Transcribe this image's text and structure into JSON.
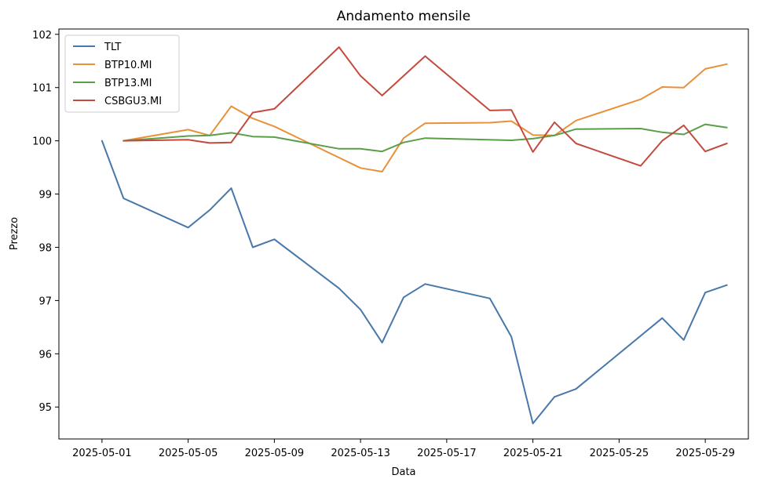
{
  "chart_data": {
    "type": "line",
    "title": "Andamento mensile",
    "xlabel": "Data",
    "ylabel": "Prezzo",
    "xlim": [
      "2025-04-29",
      "2025-05-31"
    ],
    "ylim": [
      94.4,
      102.1
    ],
    "x_ticks": [
      "2025-05-01",
      "2025-05-05",
      "2025-05-09",
      "2025-05-13",
      "2025-05-17",
      "2025-05-21",
      "2025-05-25",
      "2025-05-29"
    ],
    "y_ticks": [
      95,
      96,
      97,
      98,
      99,
      100,
      101,
      102
    ],
    "grid": false,
    "legend_position": "top-left",
    "series": [
      {
        "name": "TLT",
        "color": "#4878a8",
        "x": [
          "2025-05-01",
          "2025-05-02",
          "2025-05-05",
          "2025-05-06",
          "2025-05-07",
          "2025-05-08",
          "2025-05-09",
          "2025-05-12",
          "2025-05-13",
          "2025-05-14",
          "2025-05-15",
          "2025-05-16",
          "2025-05-19",
          "2025-05-20",
          "2025-05-21",
          "2025-05-22",
          "2025-05-23",
          "2025-05-27",
          "2025-05-28",
          "2025-05-29",
          "2025-05-30"
        ],
        "y": [
          100.0,
          98.92,
          98.37,
          98.7,
          99.11,
          98.0,
          98.15,
          97.23,
          96.83,
          96.21,
          97.06,
          97.31,
          97.04,
          96.32,
          94.69,
          95.19,
          95.34,
          96.67,
          96.26,
          97.15,
          97.29
        ]
      },
      {
        "name": "BTP10.MI",
        "color": "#e8913a",
        "x": [
          "2025-05-02",
          "2025-05-05",
          "2025-05-06",
          "2025-05-07",
          "2025-05-08",
          "2025-05-09",
          "2025-05-13",
          "2025-05-14",
          "2025-05-15",
          "2025-05-16",
          "2025-05-19",
          "2025-05-20",
          "2025-05-21",
          "2025-05-22",
          "2025-05-23",
          "2025-05-26",
          "2025-05-27",
          "2025-05-28",
          "2025-05-29",
          "2025-05-30"
        ],
        "y": [
          100.0,
          100.21,
          100.1,
          100.65,
          100.42,
          100.27,
          99.49,
          99.42,
          100.05,
          100.33,
          100.34,
          100.37,
          100.11,
          100.1,
          100.38,
          100.78,
          101.01,
          101.0,
          101.35,
          101.44
        ]
      },
      {
        "name": "BTP13.MI",
        "color": "#5a9e48",
        "x": [
          "2025-05-02",
          "2025-05-05",
          "2025-05-06",
          "2025-05-07",
          "2025-05-08",
          "2025-05-09",
          "2025-05-12",
          "2025-05-13",
          "2025-05-14",
          "2025-05-15",
          "2025-05-16",
          "2025-05-20",
          "2025-05-21",
          "2025-05-22",
          "2025-05-23",
          "2025-05-26",
          "2025-05-27",
          "2025-05-28",
          "2025-05-29",
          "2025-05-30"
        ],
        "y": [
          100.0,
          100.09,
          100.1,
          100.15,
          100.08,
          100.07,
          99.85,
          99.85,
          99.8,
          99.97,
          100.05,
          100.01,
          100.04,
          100.1,
          100.22,
          100.23,
          100.16,
          100.12,
          100.31,
          100.25
        ]
      },
      {
        "name": "CSBGU3.MI",
        "color": "#c44a3e",
        "x": [
          "2025-05-02",
          "2025-05-05",
          "2025-05-06",
          "2025-05-07",
          "2025-05-08",
          "2025-05-09",
          "2025-05-12",
          "2025-05-13",
          "2025-05-14",
          "2025-05-16",
          "2025-05-19",
          "2025-05-20",
          "2025-05-21",
          "2025-05-22",
          "2025-05-23",
          "2025-05-26",
          "2025-05-27",
          "2025-05-28",
          "2025-05-29",
          "2025-05-30"
        ],
        "y": [
          100.0,
          100.02,
          99.96,
          99.97,
          100.53,
          100.6,
          101.76,
          101.22,
          100.85,
          101.59,
          100.57,
          100.58,
          99.79,
          100.35,
          99.95,
          99.53,
          100.0,
          100.29,
          99.8,
          99.95
        ]
      }
    ]
  }
}
